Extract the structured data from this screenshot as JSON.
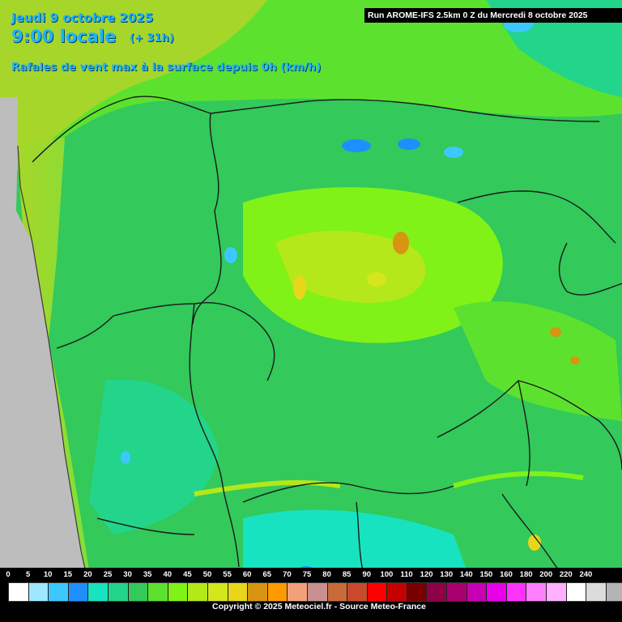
{
  "header": {
    "date": "Jeudi 9 octobre 2025",
    "time": "9:00 locale",
    "lead": "(+ 31h)",
    "parameter": "Rafales de vent max à la surface depuis 0h (km/h)",
    "run": "Run AROME-IFS 2.5km 0 Z du Mercredi 8 octobre 2025"
  },
  "legend": {
    "unit": "km/h",
    "labels": [
      "0",
      "5",
      "10",
      "15",
      "20",
      "25",
      "30",
      "35",
      "40",
      "45",
      "50",
      "55",
      "60",
      "65",
      "70",
      "75",
      "80",
      "85",
      "90",
      "100",
      "110",
      "120",
      "130",
      "140",
      "150",
      "160",
      "180",
      "200",
      "220",
      "240"
    ],
    "colors": [
      "#ffffff",
      "#9fe6ff",
      "#3cc8ff",
      "#1f8fff",
      "#17e3c0",
      "#22d58a",
      "#33c95b",
      "#5ce22e",
      "#80f218",
      "#b4e81a",
      "#d4e61c",
      "#e9d61a",
      "#d79512",
      "#ff9a00",
      "#f2a07a",
      "#c99090",
      "#c86a3a",
      "#c94a2a",
      "#ff0000",
      "#c40000",
      "#7a0000",
      "#8e0048",
      "#a80070",
      "#c800b4",
      "#e800e8",
      "#ff33ff",
      "#ff80ff",
      "#ffb0ff",
      "#ffffff",
      "#dcdcdc",
      "#b4b4b4"
    ]
  },
  "footer": {
    "copyright": "Copyright © 2025 Meteociel.fr - Source Meteo-France"
  },
  "map": {
    "ocean_color": "#bdbdbd",
    "dominant_color": "#33c95b"
  }
}
